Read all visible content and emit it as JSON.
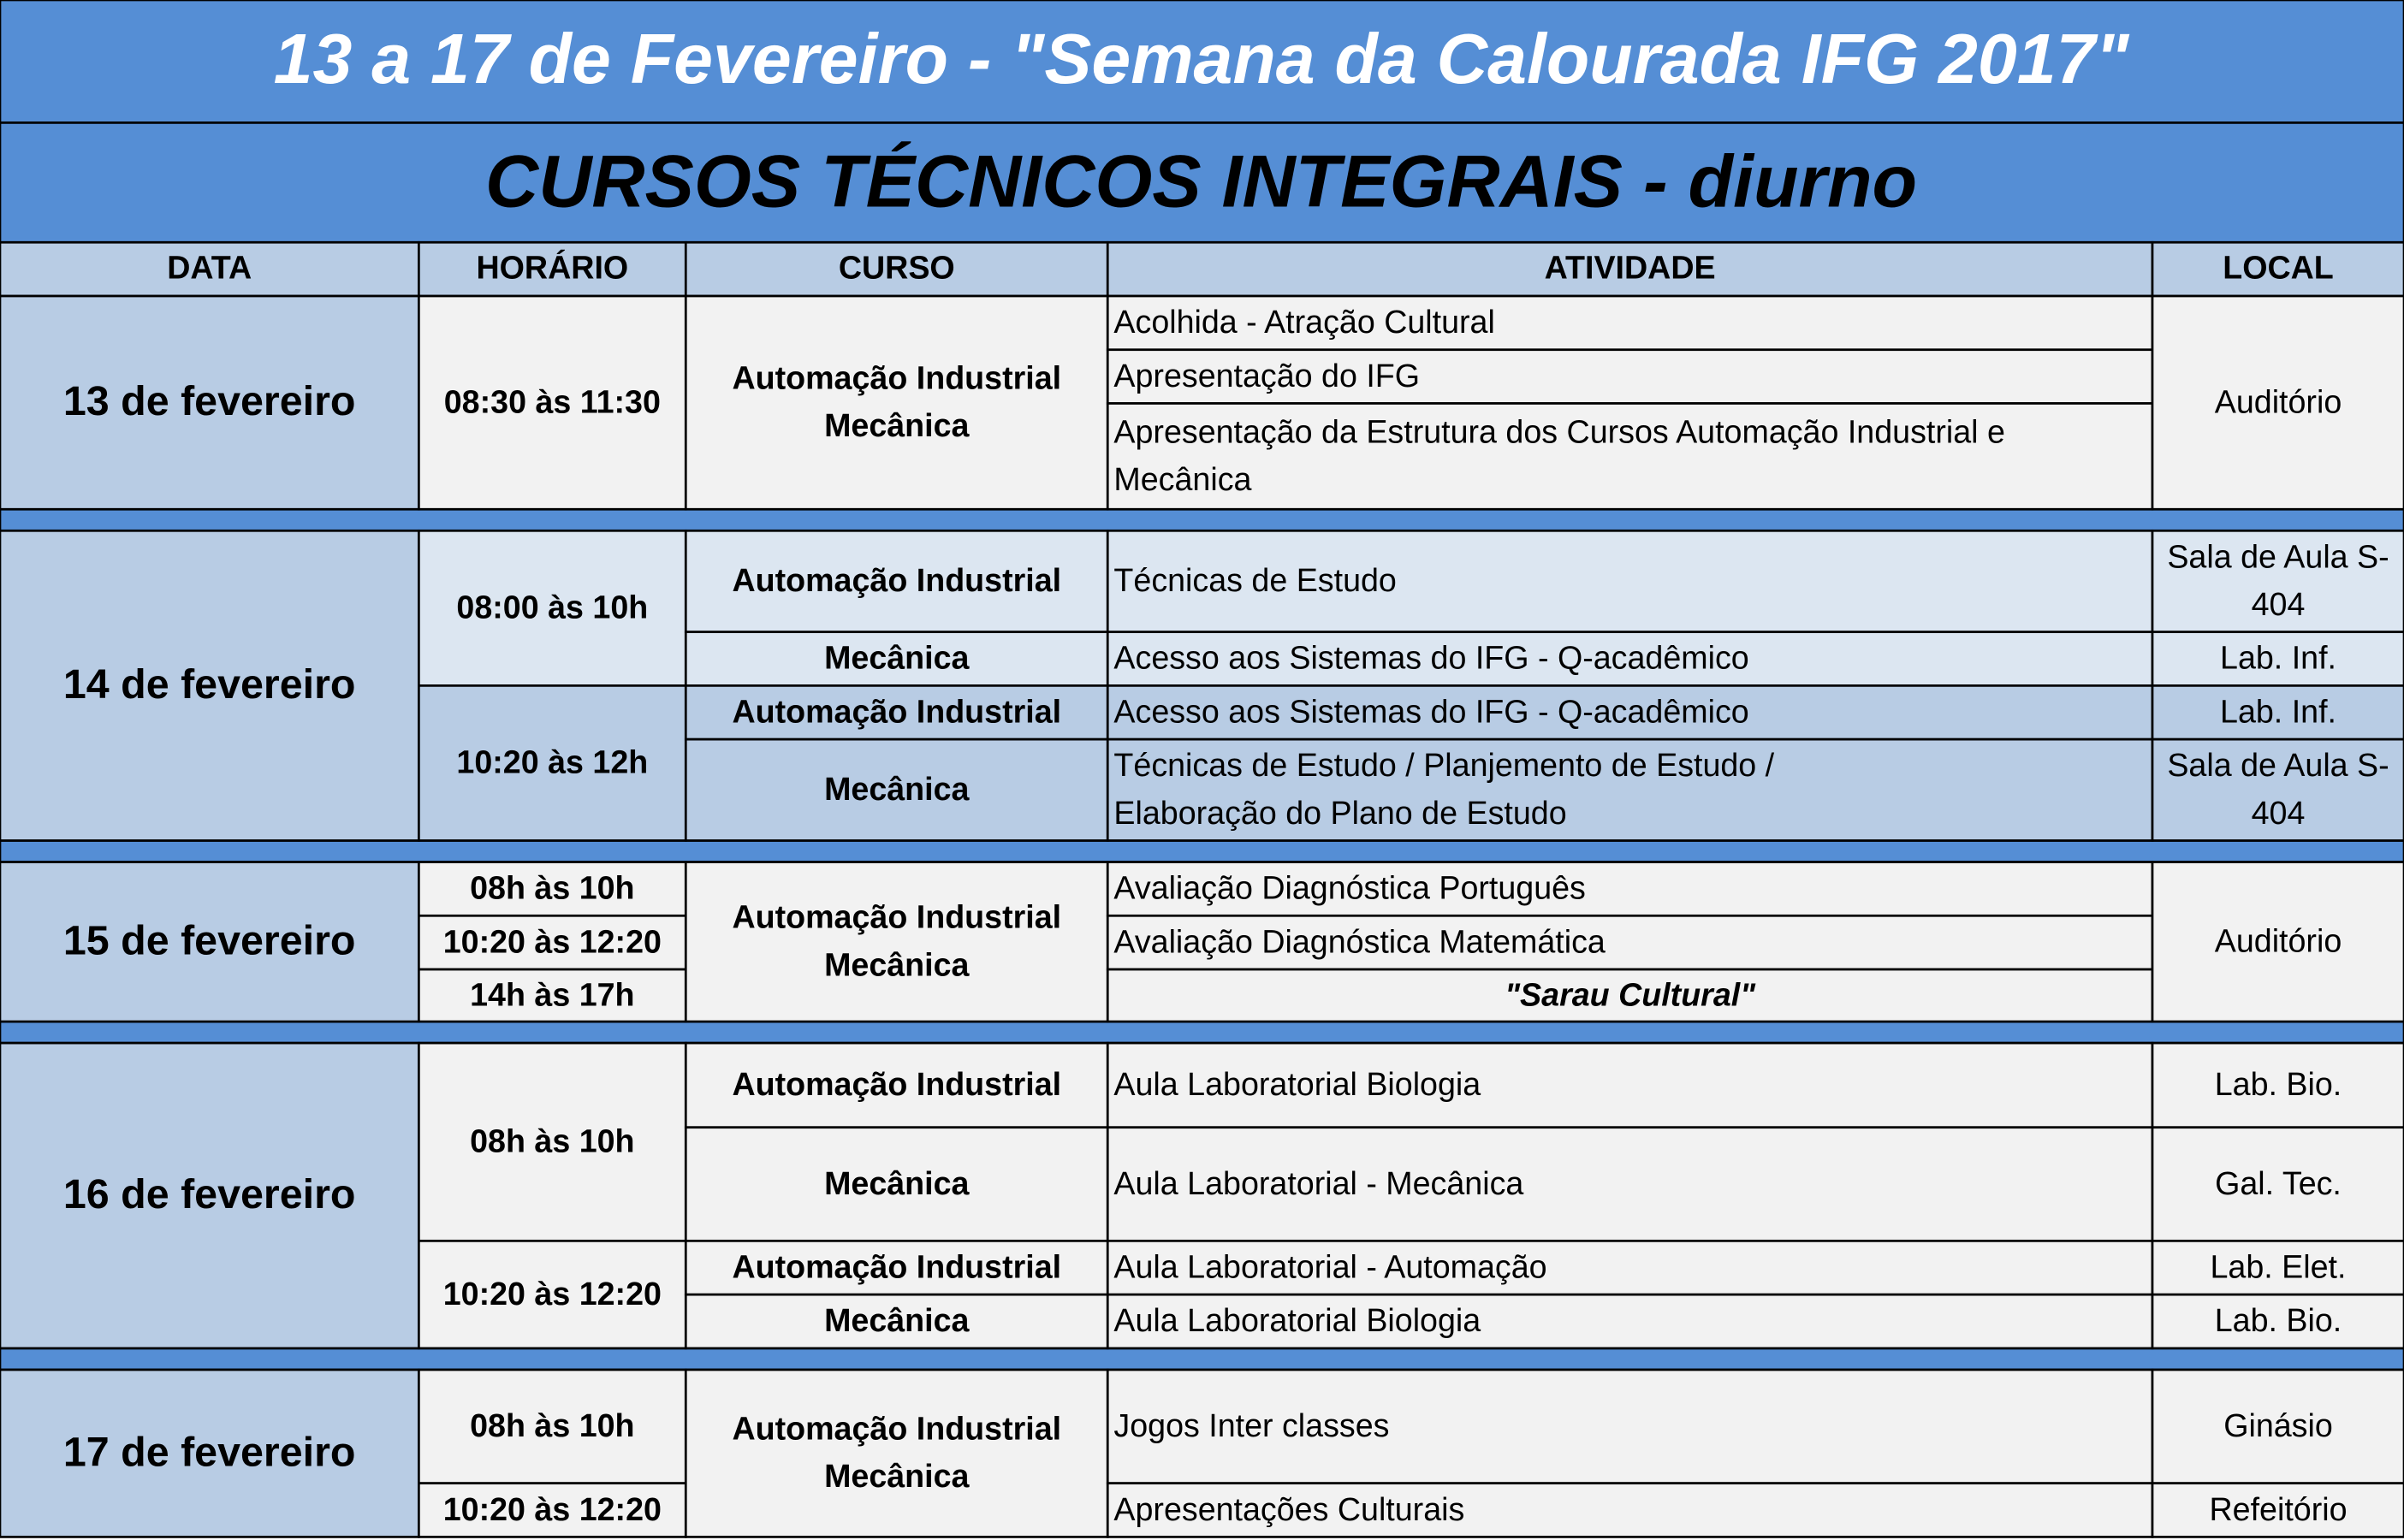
{
  "header": {
    "title": "13 a 17 de Fevereiro - \"Semana da  Calourada  IFG 2017\"",
    "subtitle": "CURSOS TÉCNICOS INTEGRAIS - diurno"
  },
  "table": {
    "columns": [
      "DATA",
      "HORÁRIO",
      "CURSO",
      "ATIVIDADE",
      "LOCAL"
    ],
    "days": [
      {
        "date": "13 de fevereiro",
        "times": [
          [
            "08:30 às 11:30"
          ]
        ],
        "courses": [
          [
            "Automação Industrial",
            "Mecânica"
          ]
        ],
        "activities": [
          [
            "Acolhida - Atração Cultural"
          ],
          [
            "Apresentação do IFG"
          ],
          [
            "Apresentação da Estrutura dos Cursos Automação Industrial e",
            "Mecânica"
          ]
        ],
        "locations": [
          [
            "Auditório"
          ]
        ]
      },
      {
        "date": "14 de fevereiro",
        "times": [
          [
            "08:00 às 10h"
          ],
          [
            "10:20 às 12h"
          ]
        ],
        "courses": [
          [
            "Automação Industrial"
          ],
          [
            "Mecânica"
          ],
          [
            "Automação Industrial"
          ],
          [
            "Mecânica"
          ]
        ],
        "activities": [
          [
            "Técnicas de Estudo"
          ],
          [
            "Acesso aos Sistemas do IFG - Q-acadêmico"
          ],
          [
            "Acesso aos Sistemas do IFG - Q-acadêmico"
          ],
          [
            "Técnicas de Estudo / Planjemento de Estudo /",
            "Elaboração do Plano de Estudo"
          ]
        ],
        "locations": [
          [
            "Sala de Aula S-",
            "404"
          ],
          [
            "Lab. Inf."
          ],
          [
            "Lab. Inf."
          ],
          [
            "Sala de Aula S-",
            "404"
          ]
        ]
      },
      {
        "date": "15 de fevereiro",
        "times": [
          [
            "08h às 10h"
          ],
          [
            "10:20 às 12:20"
          ],
          [
            "14h às 17h"
          ]
        ],
        "courses": [
          [
            "Automação Industrial",
            "Mecânica"
          ]
        ],
        "activities": [
          [
            "Avaliação Diagnóstica Português"
          ],
          [
            "Avaliação Diagnóstica Matemática"
          ],
          [
            "\"Sarau Cultural\""
          ]
        ],
        "locations": [
          [
            "Auditório"
          ]
        ]
      },
      {
        "date": "16 de fevereiro",
        "times": [
          [
            "08h às 10h"
          ],
          [
            "10:20 às 12:20"
          ]
        ],
        "courses": [
          [
            "Automação Industrial"
          ],
          [
            "Mecânica"
          ],
          [
            "Automação Industrial"
          ],
          [
            "Mecânica"
          ]
        ],
        "activities": [
          [
            "Aula Laboratorial  Biologia"
          ],
          [
            "Aula Laboratorial - Mecânica"
          ],
          [
            "Aula Laboratorial - Automação"
          ],
          [
            "Aula Laboratorial  Biologia"
          ]
        ],
        "locations": [
          [
            "Lab. Bio."
          ],
          [
            "Gal. Tec."
          ],
          [
            "Lab. Elet."
          ],
          [
            "Lab. Bio."
          ]
        ]
      },
      {
        "date": "17 de fevereiro",
        "times": [
          [
            "08h às 10h"
          ],
          [
            "10:20 às 12:20"
          ]
        ],
        "courses": [
          [
            "Automação Industrial",
            "Mecânica"
          ]
        ],
        "activities": [
          [
            "Jogos Inter classes"
          ],
          [
            "Apresentações Culturais"
          ]
        ],
        "locations": [
          [
            "Ginásio"
          ],
          [
            "Refeitório"
          ]
        ]
      }
    ]
  }
}
